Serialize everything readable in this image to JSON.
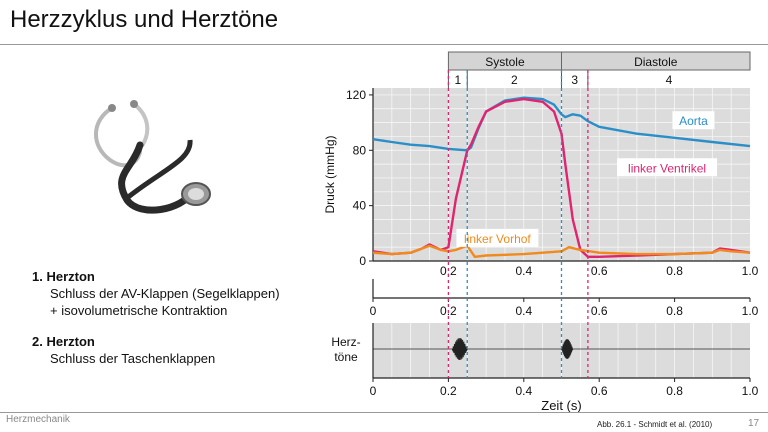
{
  "slide": {
    "title": "Herzzyklus und Herztöne",
    "footer_left": "Herzmechanik",
    "reference": "Abb. 26.1 -  Schmidt et al. (2010)",
    "page_number": "17"
  },
  "notes": [
    {
      "head": "1. Herzton",
      "lines": [
        "Schluss der AV-Klappen (Segelklappen)",
        "+ isovolumetrische Kontraktion"
      ]
    },
    {
      "head": "2. Herzton",
      "lines": [
        "Schluss der Taschenklappen"
      ]
    }
  ],
  "colors": {
    "aorta": "#2a8fc9",
    "ventricle": "#e0246f",
    "atrium": "#f08a1c",
    "plot_bg": "#dcdcdc",
    "phase_bar": "#d4d4d4"
  },
  "chart_data": {
    "type": "line",
    "phases": [
      {
        "name": "Systole",
        "x_start": 0.2,
        "x_end": 0.5
      },
      {
        "name": "Diastole",
        "x_start": 0.5,
        "x_end": 1.0
      }
    ],
    "phase_segments": [
      {
        "label": "1",
        "x_start": 0.2,
        "x_end": 0.25
      },
      {
        "label": "2",
        "x_start": 0.25,
        "x_end": 0.5
      },
      {
        "label": "3",
        "x_start": 0.5,
        "x_end": 0.57
      },
      {
        "label": "4",
        "x_start": 0.57,
        "x_end": 1.0
      }
    ],
    "ylabel": "Druck (mmHg)",
    "xlabel": "Zeit (s)",
    "ylim": [
      0,
      125
    ],
    "xlim": [
      0,
      1.0
    ],
    "y_ticks": [
      "0",
      "40",
      "80",
      "120"
    ],
    "x_ticks_top": [
      "0.2",
      "0.4",
      "0.6",
      "0.8",
      "1.0"
    ],
    "x_ticks_mid": [
      "0",
      "0.2",
      "0.4",
      "0.6",
      "0.8",
      "1.0"
    ],
    "x_ticks_bottom": [
      "0",
      "0.2",
      "0.4",
      "0.6",
      "0.8",
      "1.0"
    ],
    "markers": [
      {
        "x": 0.2,
        "color": "#e0246f"
      },
      {
        "x": 0.25,
        "color": "#2a8fc9"
      },
      {
        "x": 0.5,
        "color": "#2a8fc9"
      },
      {
        "x": 0.57,
        "color": "#e0246f"
      }
    ],
    "sound_panel_label": [
      "Herz-",
      "töne"
    ],
    "heart_sounds": [
      {
        "x_start": 0.21,
        "x_end": 0.25,
        "amplitude": 1.0
      },
      {
        "x_start": 0.5,
        "x_end": 0.53,
        "amplitude": 0.9
      }
    ],
    "series": [
      {
        "name": "Aorta",
        "color": "#2a8fc9",
        "x": [
          0,
          0.05,
          0.1,
          0.15,
          0.2,
          0.25,
          0.26,
          0.28,
          0.3,
          0.35,
          0.4,
          0.45,
          0.48,
          0.5,
          0.51,
          0.53,
          0.55,
          0.57,
          0.6,
          0.7,
          0.8,
          0.9,
          1.0
        ],
        "y": [
          88,
          86,
          84,
          83,
          81,
          80,
          82,
          96,
          108,
          116,
          118,
          117,
          113,
          106,
          104,
          106,
          105,
          101,
          97,
          92,
          89,
          86,
          83
        ]
      },
      {
        "name": "linker Ventrikel",
        "color": "#e0246f",
        "x": [
          0,
          0.05,
          0.1,
          0.13,
          0.15,
          0.18,
          0.2,
          0.22,
          0.25,
          0.26,
          0.28,
          0.3,
          0.35,
          0.4,
          0.45,
          0.48,
          0.5,
          0.51,
          0.53,
          0.55,
          0.57,
          0.6,
          0.7,
          0.8,
          0.9,
          0.92,
          0.95,
          1.0
        ],
        "y": [
          7,
          5,
          6,
          9,
          12,
          8,
          10,
          45,
          80,
          84,
          97,
          108,
          115,
          117,
          115,
          108,
          92,
          70,
          30,
          8,
          3,
          3,
          4,
          5,
          6,
          9,
          8,
          6
        ]
      },
      {
        "name": "linker Vorhof",
        "color": "#f08a1c",
        "x": [
          0,
          0.05,
          0.1,
          0.13,
          0.15,
          0.18,
          0.2,
          0.22,
          0.25,
          0.27,
          0.3,
          0.4,
          0.5,
          0.52,
          0.55,
          0.6,
          0.7,
          0.8,
          0.9,
          0.92,
          0.95,
          1.0
        ],
        "y": [
          6,
          5,
          6,
          9,
          11,
          8,
          7,
          8,
          11,
          3,
          4,
          5,
          7,
          10,
          8,
          6,
          5,
          5,
          6,
          8,
          7,
          6
        ]
      }
    ]
  }
}
